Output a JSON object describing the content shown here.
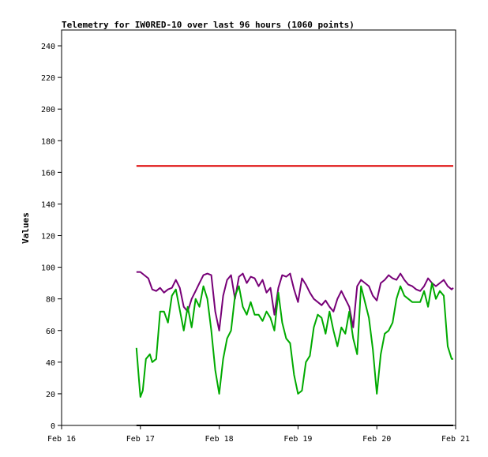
{
  "chart_data": {
    "type": "line",
    "title": "Telemetry for IW0RED-10 over last 96 hours (1060 points)",
    "xlabel": "",
    "ylabel": "Values",
    "xlim": [
      "Feb 16",
      "Feb 21"
    ],
    "ylim": [
      0,
      250
    ],
    "x_ticks": [
      "Feb 16",
      "Feb 17",
      "Feb 18",
      "Feb 19",
      "Feb 20",
      "Feb 21"
    ],
    "y_ticks": [
      0,
      20,
      40,
      60,
      80,
      100,
      120,
      140,
      160,
      180,
      200,
      220,
      240
    ],
    "grid": false,
    "legend": "none",
    "series": [
      {
        "color": "#dd0000",
        "points": [
          [
            0.95,
            164
          ],
          [
            4.97,
            164
          ]
        ]
      },
      {
        "color": "#000000",
        "points": [
          [
            0.95,
            0
          ],
          [
            4.97,
            0
          ]
        ]
      },
      {
        "color": "#770077",
        "points": [
          [
            0.95,
            97
          ],
          [
            1.0,
            97
          ],
          [
            1.05,
            95
          ],
          [
            1.1,
            93
          ],
          [
            1.15,
            86
          ],
          [
            1.2,
            85
          ],
          [
            1.25,
            87
          ],
          [
            1.3,
            84
          ],
          [
            1.35,
            86
          ],
          [
            1.4,
            87
          ],
          [
            1.45,
            92
          ],
          [
            1.5,
            87
          ],
          [
            1.55,
            75
          ],
          [
            1.6,
            72
          ],
          [
            1.65,
            80
          ],
          [
            1.7,
            85
          ],
          [
            1.75,
            90
          ],
          [
            1.8,
            95
          ],
          [
            1.85,
            96
          ],
          [
            1.9,
            95
          ],
          [
            1.95,
            72
          ],
          [
            2.0,
            60
          ],
          [
            2.05,
            82
          ],
          [
            2.1,
            92
          ],
          [
            2.15,
            95
          ],
          [
            2.2,
            80
          ],
          [
            2.25,
            94
          ],
          [
            2.3,
            96
          ],
          [
            2.35,
            90
          ],
          [
            2.4,
            94
          ],
          [
            2.45,
            93
          ],
          [
            2.5,
            88
          ],
          [
            2.55,
            92
          ],
          [
            2.6,
            84
          ],
          [
            2.65,
            87
          ],
          [
            2.7,
            70
          ],
          [
            2.75,
            87
          ],
          [
            2.8,
            95
          ],
          [
            2.85,
            94
          ],
          [
            2.9,
            96
          ],
          [
            2.95,
            86
          ],
          [
            3.0,
            78
          ],
          [
            3.05,
            93
          ],
          [
            3.1,
            89
          ],
          [
            3.15,
            84
          ],
          [
            3.2,
            80
          ],
          [
            3.25,
            78
          ],
          [
            3.3,
            76
          ],
          [
            3.35,
            79
          ],
          [
            3.4,
            75
          ],
          [
            3.45,
            72
          ],
          [
            3.5,
            80
          ],
          [
            3.55,
            85
          ],
          [
            3.6,
            80
          ],
          [
            3.65,
            75
          ],
          [
            3.7,
            62
          ],
          [
            3.75,
            88
          ],
          [
            3.8,
            92
          ],
          [
            3.85,
            90
          ],
          [
            3.9,
            88
          ],
          [
            3.95,
            82
          ],
          [
            4.0,
            79
          ],
          [
            4.05,
            90
          ],
          [
            4.1,
            92
          ],
          [
            4.15,
            95
          ],
          [
            4.2,
            93
          ],
          [
            4.25,
            92
          ],
          [
            4.3,
            96
          ],
          [
            4.35,
            92
          ],
          [
            4.4,
            89
          ],
          [
            4.45,
            88
          ],
          [
            4.5,
            86
          ],
          [
            4.55,
            85
          ],
          [
            4.6,
            88
          ],
          [
            4.65,
            93
          ],
          [
            4.7,
            90
          ],
          [
            4.75,
            88
          ],
          [
            4.8,
            90
          ],
          [
            4.85,
            92
          ],
          [
            4.9,
            88
          ],
          [
            4.95,
            86
          ],
          [
            4.97,
            87
          ]
        ]
      },
      {
        "color": "#00aa00",
        "points": [
          [
            0.95,
            49
          ],
          [
            0.98,
            30
          ],
          [
            1.0,
            18
          ],
          [
            1.03,
            22
          ],
          [
            1.07,
            42
          ],
          [
            1.12,
            45
          ],
          [
            1.15,
            40
          ],
          [
            1.2,
            42
          ],
          [
            1.25,
            72
          ],
          [
            1.3,
            72
          ],
          [
            1.35,
            65
          ],
          [
            1.4,
            82
          ],
          [
            1.45,
            86
          ],
          [
            1.5,
            73
          ],
          [
            1.55,
            60
          ],
          [
            1.6,
            75
          ],
          [
            1.65,
            62
          ],
          [
            1.7,
            80
          ],
          [
            1.75,
            75
          ],
          [
            1.8,
            88
          ],
          [
            1.85,
            80
          ],
          [
            1.9,
            60
          ],
          [
            1.95,
            35
          ],
          [
            2.0,
            20
          ],
          [
            2.05,
            42
          ],
          [
            2.1,
            55
          ],
          [
            2.15,
            60
          ],
          [
            2.2,
            82
          ],
          [
            2.25,
            88
          ],
          [
            2.3,
            75
          ],
          [
            2.35,
            70
          ],
          [
            2.4,
            78
          ],
          [
            2.45,
            70
          ],
          [
            2.5,
            70
          ],
          [
            2.55,
            66
          ],
          [
            2.6,
            72
          ],
          [
            2.65,
            68
          ],
          [
            2.7,
            60
          ],
          [
            2.75,
            84
          ],
          [
            2.8,
            65
          ],
          [
            2.85,
            55
          ],
          [
            2.9,
            52
          ],
          [
            2.95,
            32
          ],
          [
            3.0,
            20
          ],
          [
            3.05,
            22
          ],
          [
            3.1,
            40
          ],
          [
            3.15,
            44
          ],
          [
            3.2,
            62
          ],
          [
            3.25,
            70
          ],
          [
            3.3,
            68
          ],
          [
            3.35,
            58
          ],
          [
            3.4,
            72
          ],
          [
            3.45,
            60
          ],
          [
            3.5,
            50
          ],
          [
            3.55,
            62
          ],
          [
            3.6,
            58
          ],
          [
            3.65,
            72
          ],
          [
            3.7,
            55
          ],
          [
            3.75,
            45
          ],
          [
            3.8,
            88
          ],
          [
            3.85,
            78
          ],
          [
            3.9,
            68
          ],
          [
            3.95,
            48
          ],
          [
            4.0,
            20
          ],
          [
            4.05,
            45
          ],
          [
            4.1,
            58
          ],
          [
            4.15,
            60
          ],
          [
            4.2,
            65
          ],
          [
            4.25,
            80
          ],
          [
            4.3,
            88
          ],
          [
            4.35,
            82
          ],
          [
            4.4,
            80
          ],
          [
            4.45,
            78
          ],
          [
            4.5,
            78
          ],
          [
            4.55,
            78
          ],
          [
            4.6,
            85
          ],
          [
            4.65,
            75
          ],
          [
            4.7,
            90
          ],
          [
            4.75,
            80
          ],
          [
            4.8,
            85
          ],
          [
            4.85,
            82
          ],
          [
            4.9,
            50
          ],
          [
            4.95,
            42
          ],
          [
            4.97,
            42
          ]
        ]
      }
    ]
  }
}
